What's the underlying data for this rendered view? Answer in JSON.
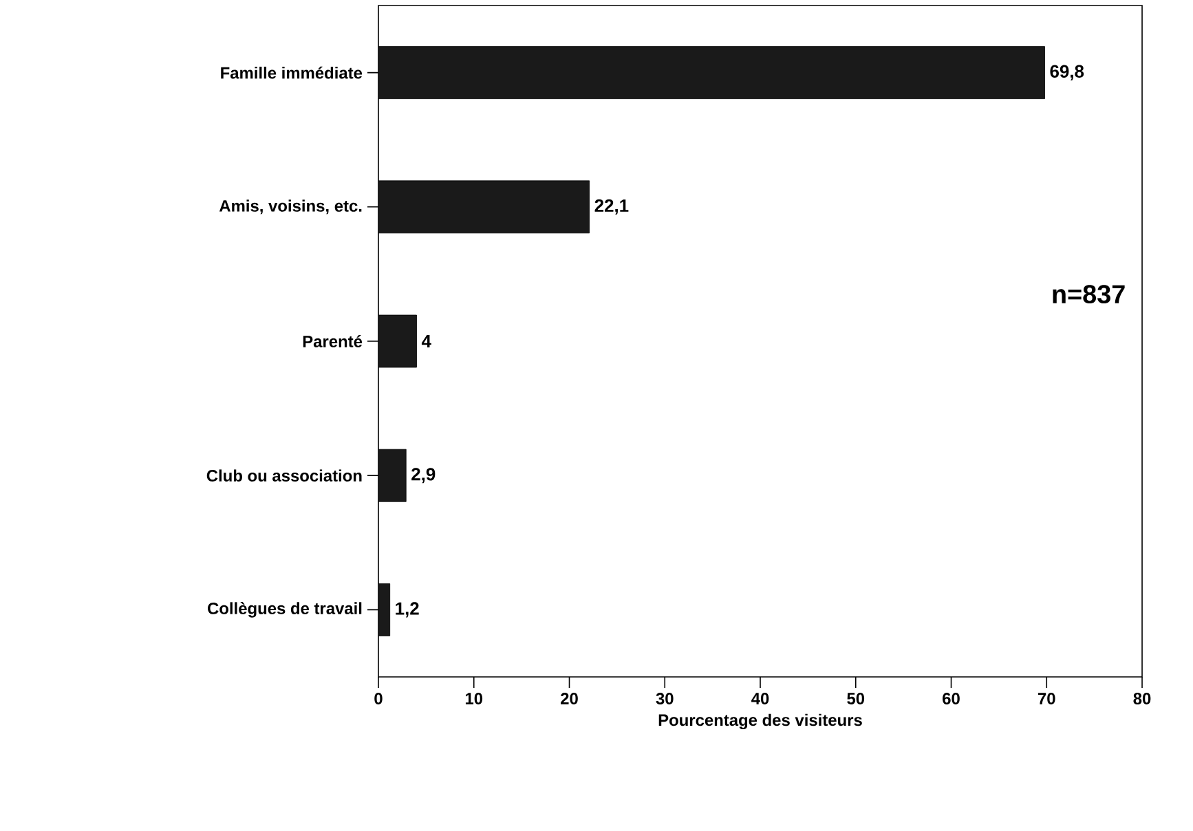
{
  "chart_data": {
    "type": "bar",
    "orientation": "horizontal",
    "xlabel": "Pourcentage des visiteurs",
    "categories": [
      "Famille immédiate",
      "Amis, voisins, etc.",
      "Parenté",
      "Club ou association",
      "Collègues de travail"
    ],
    "values": [
      69.8,
      22.1,
      4,
      2.9,
      1.2
    ],
    "value_labels": [
      "69,8",
      "22,1",
      "4",
      "2,9",
      "1,2"
    ],
    "color": "#1a1a1a",
    "xlim": [
      0,
      80
    ],
    "xticks": [
      0,
      10,
      20,
      30,
      40,
      50,
      60,
      70,
      80
    ],
    "annotations": [
      "n=837"
    ],
    "grid": false
  }
}
